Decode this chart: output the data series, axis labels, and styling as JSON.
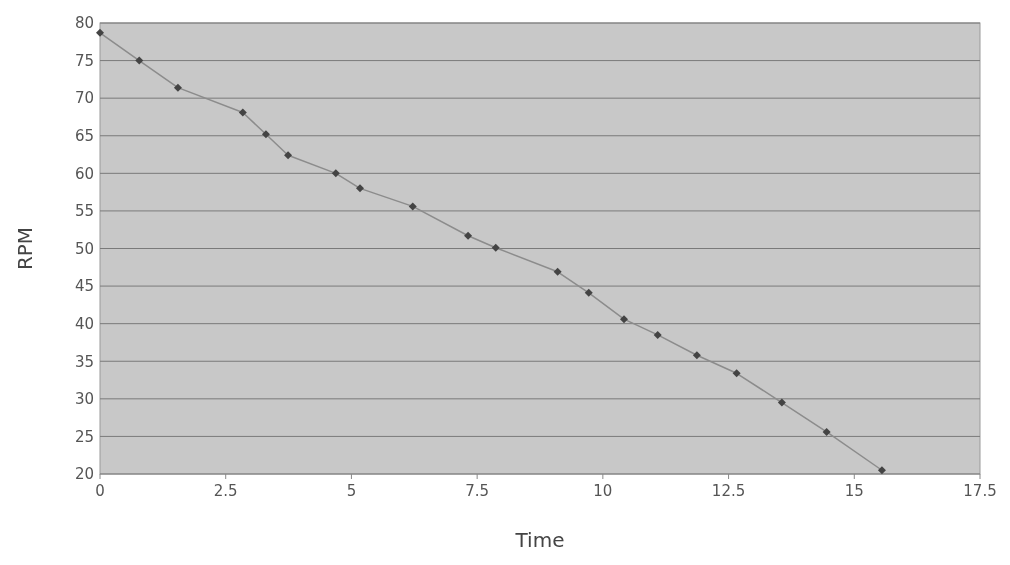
{
  "chart_data": {
    "type": "line",
    "xlabel": "Time",
    "ylabel": "RPM",
    "x": [
      0,
      0.78,
      1.55,
      2.84,
      3.3,
      3.74,
      4.69,
      5.17,
      6.22,
      7.32,
      7.87,
      9.1,
      9.72,
      10.42,
      11.09,
      11.87,
      12.66,
      13.56,
      14.45,
      15.55
    ],
    "series": [
      {
        "color": "#444444",
        "values": [
          78.7,
          75,
          71.4,
          68.1,
          65.2,
          62.4,
          60,
          58,
          55.6,
          51.7,
          50.1,
          46.9,
          44.1,
          40.6,
          38.5,
          35.8,
          33.4,
          29.5,
          25.6,
          20.5
        ]
      }
    ],
    "xlim": [
      0,
      17.5
    ],
    "xticks": [
      0,
      2.5,
      5,
      7.5,
      10,
      12.5,
      15,
      17.5
    ],
    "ylim": [
      20,
      80
    ],
    "yticks": [
      20,
      25,
      30,
      35,
      40,
      45,
      50,
      55,
      60,
      65,
      70,
      75,
      80
    ],
    "grid": "y",
    "marker": "diamond",
    "line_style": "solid"
  }
}
